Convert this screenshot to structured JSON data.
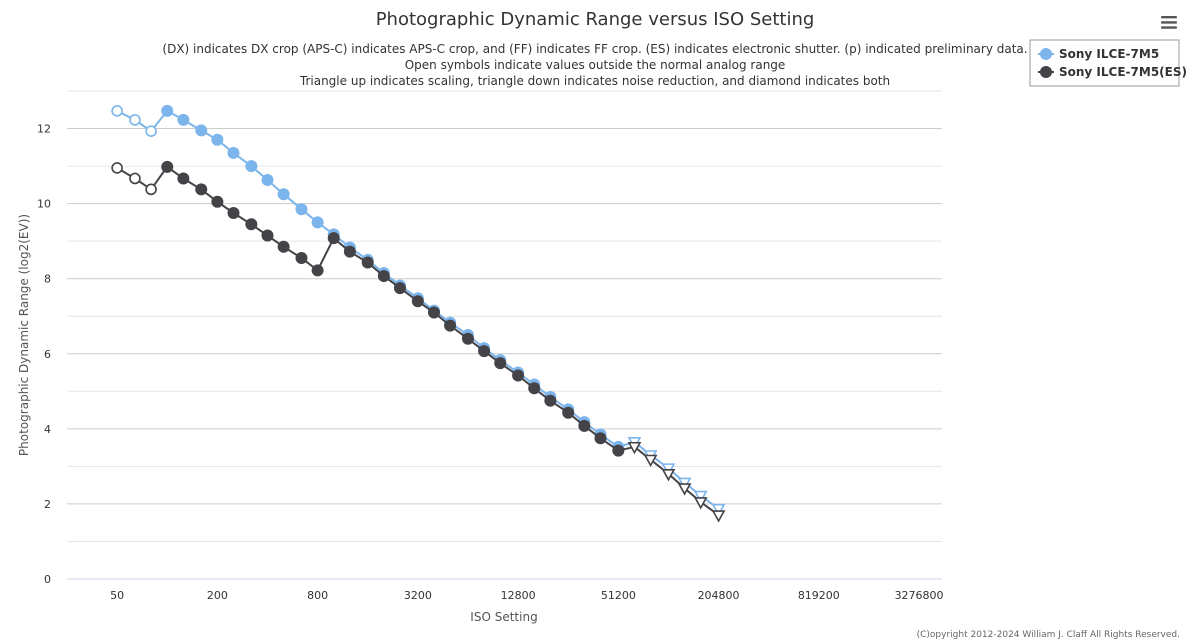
{
  "chart_data": {
    "type": "line",
    "title": "Photographic Dynamic Range versus ISO Setting",
    "subtitle": [
      "(DX) indicates DX crop (APS-C) indicates APS-C crop, and (FF) indicates FF crop. (ES) indicates electronic shutter. (p) indicated preliminary data.",
      "Open symbols indicate values outside the normal analog range",
      "Triangle up indicates scaling, triangle down indicates noise reduction, and diamond indicates both"
    ],
    "xlabel": "ISO Setting",
    "ylabel": "Photographic Dynamic Range (log2(EV))",
    "x_scale": "log2",
    "x_ticks": [
      50,
      200,
      800,
      3200,
      12800,
      51200,
      204800,
      819200,
      3276800
    ],
    "x_range": [
      25,
      4500000
    ],
    "ylim": [
      0,
      13
    ],
    "y_ticks": [
      0,
      2,
      4,
      6,
      8,
      10,
      12
    ],
    "legend_position": "top-right",
    "copyright": "(C)opyright 2012-2024 William J. Claff All Rights Reserved.",
    "series": [
      {
        "name": "Sony ILCE-7M5",
        "color": "#7cb5ec",
        "points": [
          {
            "x": 50,
            "y": 12.47,
            "m": "open"
          },
          {
            "x": 64,
            "y": 12.23,
            "m": "open"
          },
          {
            "x": 80,
            "y": 11.93,
            "m": "open"
          },
          {
            "x": 100,
            "y": 12.47,
            "m": "circle"
          },
          {
            "x": 125,
            "y": 12.23,
            "m": "circle"
          },
          {
            "x": 160,
            "y": 11.95,
            "m": "circle"
          },
          {
            "x": 200,
            "y": 11.7,
            "m": "circle"
          },
          {
            "x": 250,
            "y": 11.35,
            "m": "circle"
          },
          {
            "x": 320,
            "y": 11.0,
            "m": "circle"
          },
          {
            "x": 400,
            "y": 10.63,
            "m": "circle"
          },
          {
            "x": 500,
            "y": 10.25,
            "m": "circle"
          },
          {
            "x": 640,
            "y": 9.85,
            "m": "circle"
          },
          {
            "x": 800,
            "y": 9.5,
            "m": "circle"
          },
          {
            "x": 1000,
            "y": 9.18,
            "m": "circle"
          },
          {
            "x": 1250,
            "y": 8.83,
            "m": "circle"
          },
          {
            "x": 1600,
            "y": 8.5,
            "m": "circle"
          },
          {
            "x": 2000,
            "y": 8.15,
            "m": "circle"
          },
          {
            "x": 2500,
            "y": 7.82,
            "m": "circle"
          },
          {
            "x": 3200,
            "y": 7.48,
            "m": "circle"
          },
          {
            "x": 4000,
            "y": 7.15,
            "m": "circle"
          },
          {
            "x": 5000,
            "y": 6.83,
            "m": "circle"
          },
          {
            "x": 6400,
            "y": 6.5,
            "m": "circle"
          },
          {
            "x": 8000,
            "y": 6.15,
            "m": "circle"
          },
          {
            "x": 10000,
            "y": 5.83,
            "m": "circle"
          },
          {
            "x": 12800,
            "y": 5.5,
            "m": "circle"
          },
          {
            "x": 16000,
            "y": 5.18,
            "m": "circle"
          },
          {
            "x": 20000,
            "y": 4.85,
            "m": "circle"
          },
          {
            "x": 25600,
            "y": 4.52,
            "m": "circle"
          },
          {
            "x": 32000,
            "y": 4.18,
            "m": "circle"
          },
          {
            "x": 40000,
            "y": 3.85,
            "m": "circle"
          },
          {
            "x": 51200,
            "y": 3.52,
            "m": "circle"
          },
          {
            "x": 64000,
            "y": 3.65,
            "m": "tri-down"
          },
          {
            "x": 80000,
            "y": 3.3,
            "m": "tri-down"
          },
          {
            "x": 102400,
            "y": 2.95,
            "m": "tri-down"
          },
          {
            "x": 128000,
            "y": 2.57,
            "m": "tri-down"
          },
          {
            "x": 160000,
            "y": 2.22,
            "m": "tri-down"
          },
          {
            "x": 204800,
            "y": 1.87,
            "m": "tri-down"
          }
        ]
      },
      {
        "name": "Sony ILCE-7M5(ES)",
        "color": "#434348",
        "points": [
          {
            "x": 50,
            "y": 10.95,
            "m": "open"
          },
          {
            "x": 64,
            "y": 10.67,
            "m": "open"
          },
          {
            "x": 80,
            "y": 10.38,
            "m": "open"
          },
          {
            "x": 100,
            "y": 10.98,
            "m": "circle"
          },
          {
            "x": 125,
            "y": 10.67,
            "m": "circle"
          },
          {
            "x": 160,
            "y": 10.38,
            "m": "circle"
          },
          {
            "x": 200,
            "y": 10.05,
            "m": "circle"
          },
          {
            "x": 250,
            "y": 9.75,
            "m": "circle"
          },
          {
            "x": 320,
            "y": 9.45,
            "m": "circle"
          },
          {
            "x": 400,
            "y": 9.15,
            "m": "circle"
          },
          {
            "x": 500,
            "y": 8.85,
            "m": "circle"
          },
          {
            "x": 640,
            "y": 8.55,
            "m": "circle"
          },
          {
            "x": 800,
            "y": 8.22,
            "m": "circle"
          },
          {
            "x": 1000,
            "y": 9.08,
            "m": "circle"
          },
          {
            "x": 1250,
            "y": 8.72,
            "m": "circle"
          },
          {
            "x": 1600,
            "y": 8.43,
            "m": "circle"
          },
          {
            "x": 2000,
            "y": 8.07,
            "m": "circle"
          },
          {
            "x": 2500,
            "y": 7.75,
            "m": "circle"
          },
          {
            "x": 3200,
            "y": 7.4,
            "m": "circle"
          },
          {
            "x": 4000,
            "y": 7.1,
            "m": "circle"
          },
          {
            "x": 5000,
            "y": 6.75,
            "m": "circle"
          },
          {
            "x": 6400,
            "y": 6.4,
            "m": "circle"
          },
          {
            "x": 8000,
            "y": 6.07,
            "m": "circle"
          },
          {
            "x": 10000,
            "y": 5.75,
            "m": "circle"
          },
          {
            "x": 12800,
            "y": 5.42,
            "m": "circle"
          },
          {
            "x": 16000,
            "y": 5.08,
            "m": "circle"
          },
          {
            "x": 20000,
            "y": 4.75,
            "m": "circle"
          },
          {
            "x": 25600,
            "y": 4.43,
            "m": "circle"
          },
          {
            "x": 32000,
            "y": 4.08,
            "m": "circle"
          },
          {
            "x": 40000,
            "y": 3.75,
            "m": "circle"
          },
          {
            "x": 51200,
            "y": 3.42,
            "m": "circle"
          },
          {
            "x": 64000,
            "y": 3.52,
            "m": "tri-down"
          },
          {
            "x": 80000,
            "y": 3.18,
            "m": "tri-down"
          },
          {
            "x": 102400,
            "y": 2.8,
            "m": "tri-down"
          },
          {
            "x": 128000,
            "y": 2.42,
            "m": "tri-down"
          },
          {
            "x": 160000,
            "y": 2.05,
            "m": "tri-down"
          },
          {
            "x": 204800,
            "y": 1.7,
            "m": "tri-down"
          }
        ]
      }
    ]
  },
  "menu": {
    "icon": "hamburger-menu-icon"
  }
}
